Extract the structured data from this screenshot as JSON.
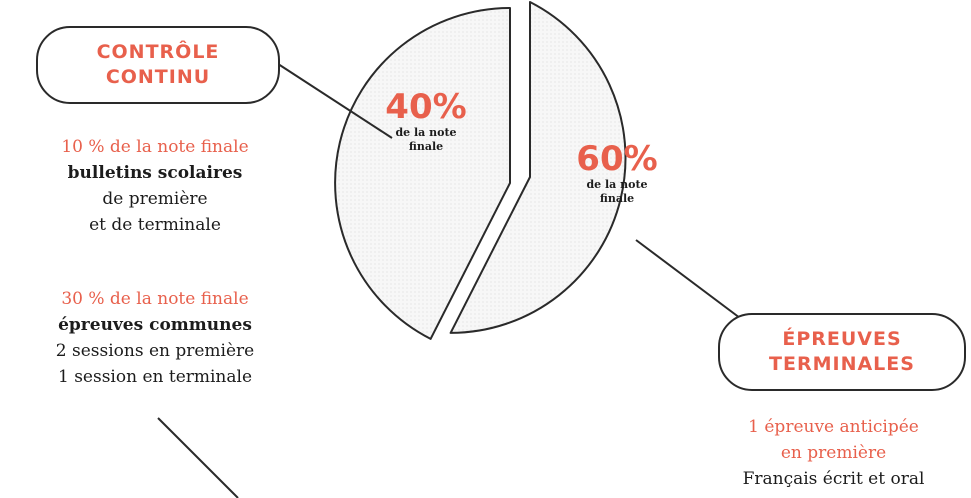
{
  "colors": {
    "accent": "#e8604c",
    "stroke": "#2a2a2a",
    "text": "#1c1c1c"
  },
  "pills": {
    "controle_continu": [
      "CONTRÔLE",
      "CONTINU"
    ],
    "epreuves_terminales": [
      "ÉPREUVES",
      "TERMINALES"
    ]
  },
  "pie": {
    "slice_small": {
      "value": "40%",
      "caption": "de la note finale"
    },
    "slice_large": {
      "value": "60%",
      "caption": "de la note finale"
    }
  },
  "controle_continu_details": {
    "part1": {
      "weight": "10 % de la note finale",
      "title": "bulletins scolaires",
      "line1": "de première",
      "line2": "et de terminale"
    },
    "part2": {
      "weight": "30 % de la note finale",
      "title": "épreuves communes",
      "line1": "2 sessions en première",
      "line2": "1 session en terminale"
    }
  },
  "epreuves_terminales_details": {
    "line1": "1 épreuve anticipée",
    "line2": "en première",
    "line3": "Français écrit et oral"
  }
}
